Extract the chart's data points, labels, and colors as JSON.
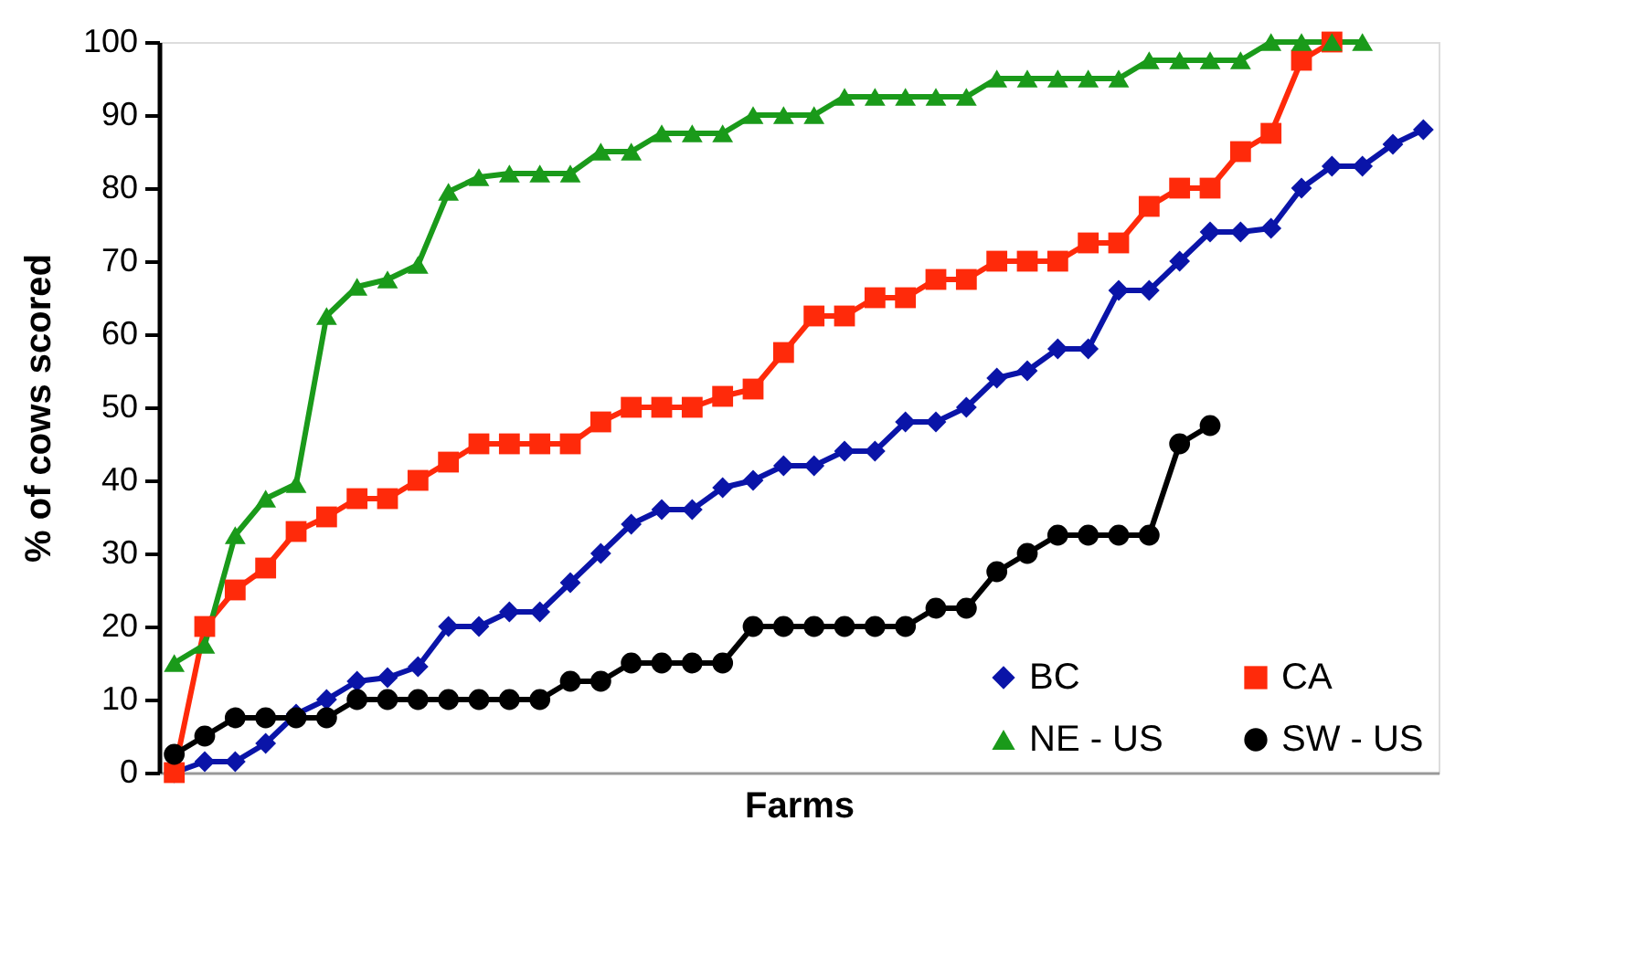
{
  "chart_data": {
    "type": "line",
    "xlabel": "Farms",
    "ylabel": "% of cows scored",
    "categories": [
      null,
      null,
      null,
      null,
      null,
      null,
      null,
      null,
      null,
      null,
      null,
      null,
      null,
      null,
      null,
      null,
      null,
      null,
      null,
      null,
      null,
      null,
      null,
      null,
      null,
      null,
      null,
      null,
      null,
      null,
      null,
      null,
      null,
      null,
      null,
      null,
      null,
      null,
      null,
      null,
      null,
      null
    ],
    "series": [
      {
        "name": "BC",
        "color": "#0a14a8",
        "marker": "diamond",
        "values": [
          0,
          1.5,
          1.5,
          4,
          8,
          10,
          12.5,
          13,
          14.5,
          20,
          20,
          22,
          22,
          26,
          30,
          34,
          36,
          36,
          39,
          40,
          42,
          42,
          44,
          44,
          48,
          48,
          50,
          54,
          55,
          58,
          58,
          66,
          66,
          70,
          74,
          74,
          74.5,
          80,
          83,
          83,
          86,
          88
        ]
      },
      {
        "name": "CA",
        "color": "#ff2a0a",
        "marker": "square",
        "values": [
          0,
          20,
          25,
          28,
          33,
          35,
          37.5,
          37.5,
          40,
          42.5,
          45,
          45,
          45,
          45,
          48,
          50,
          50,
          50,
          51.5,
          52.5,
          57.5,
          62.5,
          62.5,
          65,
          65,
          67.5,
          67.5,
          70,
          70,
          70,
          72.5,
          72.5,
          77.5,
          80,
          80,
          85,
          87.5,
          97.5,
          100,
          null,
          null,
          null
        ]
      },
      {
        "name": "NE - US",
        "color": "#1a9a1a",
        "marker": "triangle",
        "values": [
          15,
          17.5,
          32.5,
          37.5,
          39.5,
          62.5,
          66.5,
          67.5,
          69.5,
          79.5,
          81.5,
          82,
          82,
          82,
          85,
          85,
          87.5,
          87.5,
          87.5,
          90,
          90,
          90,
          92.5,
          92.5,
          92.5,
          92.5,
          92.5,
          95,
          95,
          95,
          95,
          95,
          97.5,
          97.5,
          97.5,
          97.5,
          100,
          100,
          100,
          100,
          null,
          null
        ]
      },
      {
        "name": "SW - US",
        "color": "#000000",
        "marker": "circle",
        "values": [
          2.5,
          5,
          7.5,
          7.5,
          7.5,
          7.5,
          10,
          10,
          10,
          10,
          10,
          10,
          10,
          12.5,
          12.5,
          15,
          15,
          15,
          15,
          20,
          20,
          20,
          20,
          20,
          20,
          22.5,
          22.5,
          27.5,
          30,
          32.5,
          32.5,
          32.5,
          32.5,
          45,
          47.5,
          null,
          null,
          null,
          null,
          null,
          null,
          null
        ]
      }
    ],
    "ylim": [
      0,
      100
    ],
    "yticks": [
      0,
      10,
      20,
      30,
      40,
      50,
      60,
      70,
      80,
      90,
      100
    ],
    "grid": false,
    "legend": "bottom right",
    "tick_labels": "y",
    "line_style": "solid"
  }
}
